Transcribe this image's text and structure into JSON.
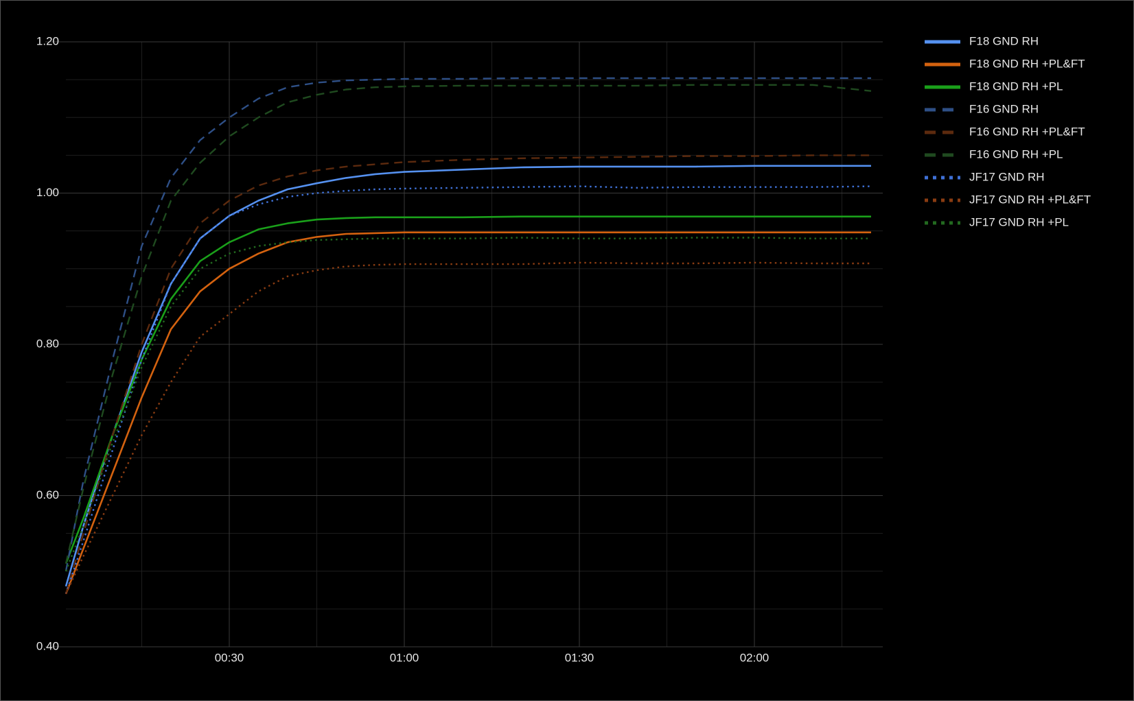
{
  "chart_data": {
    "type": "line",
    "x": [
      2,
      5,
      10,
      15,
      20,
      25,
      30,
      35,
      40,
      45,
      50,
      55,
      60,
      70,
      80,
      90,
      100,
      110,
      120,
      130,
      140
    ],
    "xlim": [
      2,
      142
    ],
    "xticks": [
      {
        "value": 30,
        "label": "00:30"
      },
      {
        "value": 60,
        "label": "01:00"
      },
      {
        "value": 90,
        "label": "01:30"
      },
      {
        "value": 120,
        "label": "02:00"
      }
    ],
    "xminorticks": [
      15,
      45,
      75,
      105,
      135
    ],
    "ylim": [
      0.4,
      1.2
    ],
    "yticks": [
      {
        "value": 0.4,
        "label": "0.40"
      },
      {
        "value": 0.6,
        "label": "0.60"
      },
      {
        "value": 0.8,
        "label": "0.80"
      },
      {
        "value": 1.0,
        "label": "1.00"
      },
      {
        "value": 1.2,
        "label": "1.20"
      }
    ],
    "yminorticks": [
      0.5,
      0.7,
      0.9,
      1.1,
      0.45,
      0.55,
      0.65,
      0.75,
      0.85,
      0.95,
      1.05,
      1.15
    ],
    "grid": true,
    "legend": "right",
    "series": [
      {
        "name": "F18 GND RH",
        "color": "#5591f0",
        "dash": "solid",
        "values": [
          0.48,
          0.56,
          0.68,
          0.79,
          0.88,
          0.94,
          0.97,
          0.99,
          1.005,
          1.013,
          1.02,
          1.025,
          1.028,
          1.031,
          1.034,
          1.035,
          1.035,
          1.035,
          1.036,
          1.036,
          1.036
        ]
      },
      {
        "name": "F18 GND RH +PL&FT",
        "color": "#d4620f",
        "dash": "solid",
        "values": [
          0.47,
          0.53,
          0.63,
          0.73,
          0.82,
          0.87,
          0.9,
          0.92,
          0.935,
          0.942,
          0.946,
          0.947,
          0.948,
          0.948,
          0.948,
          0.948,
          0.948,
          0.948,
          0.948,
          0.948,
          0.948
        ]
      },
      {
        "name": "F18 GND RH +PL",
        "color": "#1aa01a",
        "dash": "solid",
        "values": [
          0.51,
          0.57,
          0.68,
          0.78,
          0.86,
          0.91,
          0.935,
          0.952,
          0.96,
          0.965,
          0.967,
          0.968,
          0.968,
          0.968,
          0.969,
          0.969,
          0.969,
          0.969,
          0.969,
          0.969,
          0.969
        ]
      },
      {
        "name": "F16 GND RH",
        "color": "#2e4f86",
        "dash": "dashed",
        "values": [
          0.5,
          0.62,
          0.78,
          0.93,
          1.02,
          1.07,
          1.1,
          1.125,
          1.14,
          1.146,
          1.149,
          1.15,
          1.151,
          1.151,
          1.152,
          1.152,
          1.152,
          1.152,
          1.152,
          1.152,
          1.152
        ]
      },
      {
        "name": "F16 GND RH +PL&FT",
        "color": "#5c2a0e",
        "dash": "dashed",
        "values": [
          0.47,
          0.55,
          0.68,
          0.8,
          0.9,
          0.96,
          0.99,
          1.01,
          1.022,
          1.03,
          1.035,
          1.038,
          1.041,
          1.044,
          1.046,
          1.047,
          1.048,
          1.049,
          1.049,
          1.05,
          1.05
        ]
      },
      {
        "name": "F16 GND RH +PL",
        "color": "#1f4a1f",
        "dash": "dashed",
        "values": [
          0.51,
          0.61,
          0.76,
          0.89,
          0.99,
          1.04,
          1.075,
          1.1,
          1.12,
          1.13,
          1.137,
          1.14,
          1.141,
          1.142,
          1.142,
          1.142,
          1.142,
          1.143,
          1.143,
          1.143,
          1.135
        ]
      },
      {
        "name": "JF17 GND RH",
        "color": "#3f71d6",
        "dash": "dotted",
        "values": [
          0.47,
          0.54,
          0.66,
          0.78,
          0.88,
          0.94,
          0.97,
          0.985,
          0.995,
          1.0,
          1.003,
          1.005,
          1.006,
          1.007,
          1.008,
          1.009,
          1.007,
          1.008,
          1.008,
          1.008,
          1.009
        ]
      },
      {
        "name": "JF17 GND RH +PL&FT",
        "color": "#8a3c12",
        "dash": "dotted",
        "values": [
          0.47,
          0.52,
          0.6,
          0.68,
          0.75,
          0.81,
          0.84,
          0.87,
          0.89,
          0.898,
          0.903,
          0.905,
          0.906,
          0.906,
          0.906,
          0.908,
          0.907,
          0.907,
          0.908,
          0.907,
          0.907
        ]
      },
      {
        "name": "JF17 GND RH +PL",
        "color": "#22691f",
        "dash": "dotted",
        "values": [
          0.5,
          0.56,
          0.67,
          0.77,
          0.85,
          0.9,
          0.92,
          0.93,
          0.935,
          0.938,
          0.939,
          0.94,
          0.94,
          0.94,
          0.941,
          0.94,
          0.94,
          0.941,
          0.941,
          0.94,
          0.94
        ]
      }
    ]
  }
}
